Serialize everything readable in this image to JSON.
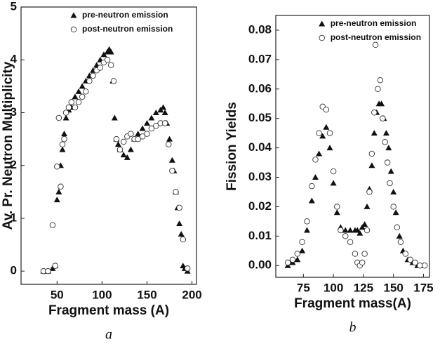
{
  "chart_data": [
    {
      "type": "scatter",
      "label": "a",
      "xlabel": "Fragment mass (A)",
      "ylabel": "Av. Pr. Neutron Multiplicity",
      "xlim": [
        10,
        205
      ],
      "ylim": [
        -0.25,
        5
      ],
      "xticks": [
        50,
        100,
        150,
        200
      ],
      "yticks": [
        0,
        1,
        2,
        3,
        4,
        5
      ],
      "legend": "top",
      "series": [
        {
          "name": "pre-neutron emission",
          "marker": "triangle",
          "color": "#111111",
          "x": [
            35,
            40,
            45,
            48,
            50,
            52,
            54,
            56,
            58,
            60,
            63,
            66,
            70,
            74,
            78,
            82,
            86,
            90,
            94,
            98,
            102,
            106,
            108,
            110,
            112,
            114,
            116,
            118,
            120,
            124,
            128,
            132,
            136,
            140,
            145,
            150,
            155,
            160,
            165,
            168,
            170,
            172,
            175,
            178,
            180,
            182,
            184,
            186,
            188,
            190,
            192,
            195
          ],
          "values": [
            0,
            0,
            0.05,
            0.1,
            1.35,
            1.5,
            2.0,
            2.3,
            2.6,
            2.9,
            3.05,
            3.1,
            3.3,
            3.4,
            3.5,
            3.6,
            3.7,
            3.8,
            3.9,
            4.0,
            4.1,
            4.15,
            4.2,
            4.15,
            3.6,
            2.9,
            2.5,
            2.4,
            2.3,
            2.2,
            2.15,
            2.3,
            2.5,
            2.6,
            2.7,
            2.8,
            2.9,
            3.0,
            3.05,
            3.1,
            3.0,
            2.8,
            2.5,
            2.1,
            1.9,
            1.5,
            1.2,
            0.9,
            0.7,
            0.1,
            0.05,
            0
          ]
        },
        {
          "name": "post-neutron emission",
          "marker": "circle-open",
          "color": "#333333",
          "x": [
            35,
            40,
            45,
            48,
            50,
            52,
            54,
            56,
            58,
            60,
            63,
            66,
            70,
            74,
            78,
            82,
            86,
            90,
            94,
            98,
            102,
            106,
            110,
            113,
            116,
            120,
            124,
            128,
            132,
            136,
            140,
            145,
            150,
            155,
            160,
            165,
            170,
            174,
            178,
            182,
            186,
            190,
            195
          ],
          "values": [
            0,
            0,
            0.87,
            0.1,
            1.98,
            2.9,
            1.6,
            2.4,
            2.5,
            3.0,
            3.1,
            3.2,
            3.1,
            3.2,
            3.3,
            3.4,
            3.6,
            3.7,
            3.8,
            3.85,
            3.95,
            4.0,
            3.9,
            3.6,
            2.5,
            2.3,
            2.45,
            2.55,
            2.6,
            2.5,
            2.5,
            2.55,
            2.6,
            2.7,
            2.75,
            2.8,
            2.8,
            2.4,
            1.9,
            1.5,
            1.2,
            0.6,
            0.05
          ]
        }
      ]
    },
    {
      "type": "scatter",
      "label": "b",
      "xlabel": "Fragment mass(A)",
      "ylabel": "Fission Yields",
      "xlim": [
        52,
        180
      ],
      "ylim": [
        -0.004,
        0.085
      ],
      "xticks": [
        75,
        100,
        125,
        150,
        175
      ],
      "yticks": [
        {
          "value": 0,
          "label": "0.00"
        },
        {
          "value": 0.01,
          "label": "0.01"
        },
        {
          "value": 0.02,
          "label": "0.02"
        },
        {
          "value": 0.03,
          "label": "0.03"
        },
        {
          "value": 0.04,
          "label": "0.04"
        },
        {
          "value": 0.05,
          "label": "0.05"
        },
        {
          "value": 0.06,
          "label": "0.06"
        },
        {
          "value": 0.07,
          "label": "0.07"
        },
        {
          "value": 0.08,
          "label": "0.08"
        }
      ],
      "legend": "top",
      "series": [
        {
          "name": "pre-neutron emission",
          "marker": "triangle",
          "color": "#111111",
          "x": [
            62,
            66,
            70,
            74,
            78,
            82,
            85,
            88,
            91,
            94,
            97,
            100,
            103,
            106,
            110,
            114,
            118,
            120,
            122,
            124,
            126,
            128,
            130,
            132,
            134,
            136,
            138,
            140,
            142,
            144,
            146,
            148,
            150,
            152,
            155,
            158,
            162,
            166,
            170,
            175
          ],
          "values": [
            0,
            0.001,
            0.002,
            0.005,
            0.012,
            0.022,
            0.03,
            0.038,
            0.044,
            0.047,
            0.04,
            0.028,
            0.018,
            0.013,
            0.012,
            0.012,
            0.012,
            0.012,
            0.011,
            0.013,
            0.014,
            0.02,
            0.026,
            0.034,
            0.045,
            0.052,
            0.055,
            0.055,
            0.05,
            0.045,
            0.04,
            0.032,
            0.025,
            0.018,
            0.01,
            0.005,
            0.002,
            0.001,
            0,
            0
          ]
        },
        {
          "name": "post-neutron emission",
          "marker": "circle-open",
          "color": "#333333",
          "x": [
            62,
            66,
            70,
            74,
            78,
            82,
            85,
            88,
            91,
            94,
            97,
            100,
            103,
            106,
            110,
            114,
            118,
            120,
            122,
            124,
            126,
            128,
            130,
            132,
            134,
            135,
            137,
            139,
            141,
            143,
            145,
            147,
            150,
            153,
            156,
            160,
            164,
            168,
            172,
            176
          ],
          "values": [
            0.001,
            0.002,
            0.004,
            0.008,
            0.015,
            0.027,
            0.036,
            0.045,
            0.054,
            0.053,
            0.045,
            0.032,
            0.02,
            0.012,
            0.01,
            0.008,
            0.004,
            0.001,
            0,
            0.001,
            0.004,
            0.012,
            0.025,
            0.038,
            0.052,
            0.075,
            0.06,
            0.063,
            0.05,
            0.042,
            0.035,
            0.028,
            0.02,
            0.013,
            0.008,
            0.004,
            0.002,
            0.001,
            0,
            0
          ]
        }
      ]
    }
  ]
}
